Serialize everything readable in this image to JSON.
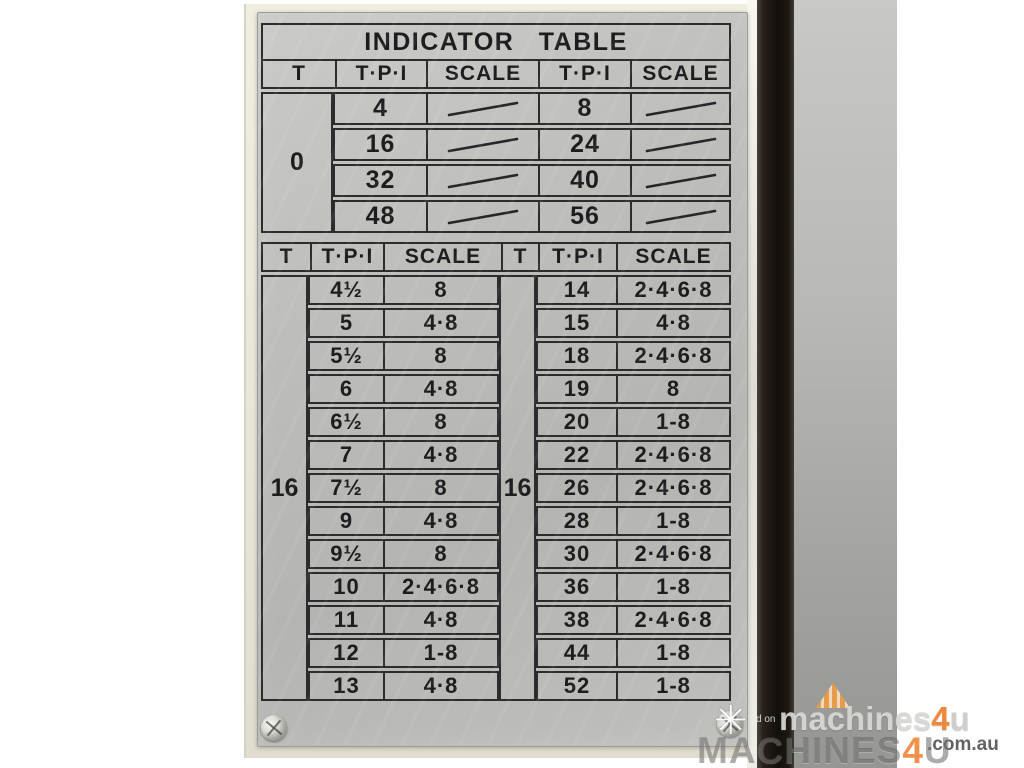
{
  "photo": {
    "plate": {
      "title": "INDICATOR TABLE",
      "upper_table": {
        "headers": [
          "T",
          "T·P·I",
          "SCALE",
          "T·P·I",
          "SCALE"
        ],
        "t_value": "0",
        "scale_mark": "diagonal-line",
        "rows": [
          [
            "4",
            "/",
            "8",
            "/"
          ],
          [
            "16",
            "/",
            "24",
            "/"
          ],
          [
            "32",
            "/",
            "40",
            "/"
          ],
          [
            "48",
            "/",
            "56",
            "/"
          ]
        ]
      },
      "lower_table": {
        "headers": [
          "T",
          "T·P·I",
          "SCALE",
          "T",
          "T·P·I",
          "SCALE"
        ],
        "left_t_value": "16",
        "right_t_value": "16",
        "left_rows": [
          [
            "4½",
            "8"
          ],
          [
            "5",
            "4·8"
          ],
          [
            "5½",
            "8"
          ],
          [
            "6",
            "4·8"
          ],
          [
            "6½",
            "8"
          ],
          [
            "7",
            "4·8"
          ],
          [
            "7½",
            "8"
          ],
          [
            "9",
            "4·8"
          ],
          [
            "9½",
            "8"
          ],
          [
            "10",
            "2·4·6·8"
          ],
          [
            "11",
            "4·8"
          ],
          [
            "12",
            "1-8"
          ],
          [
            "13",
            "4·8"
          ]
        ],
        "right_rows": [
          [
            "14",
            "2·4·6·8"
          ],
          [
            "15",
            "4·8"
          ],
          [
            "18",
            "2·4·6·8"
          ],
          [
            "19",
            "8"
          ],
          [
            "20",
            "1-8"
          ],
          [
            "22",
            "2·4·6·8"
          ],
          [
            "26",
            "2·4·6·8"
          ],
          [
            "28",
            "1-8"
          ],
          [
            "30",
            "2·4·6·8"
          ],
          [
            "36",
            "1-8"
          ],
          [
            "38",
            "2·4·6·8"
          ],
          [
            "44",
            "1-8"
          ],
          [
            "52",
            "1-8"
          ]
        ]
      }
    },
    "watermark": {
      "star": "✳",
      "small_text": "d on",
      "brand_prefix": "machines",
      "brand_digit": "4",
      "brand_suffix": "u",
      "domain": ".com.au",
      "ghost_prefix": "MACHINES",
      "ghost_digit": "4",
      "ghost_suffix": "U",
      "accent_orange": "#ee7f2d"
    }
  }
}
